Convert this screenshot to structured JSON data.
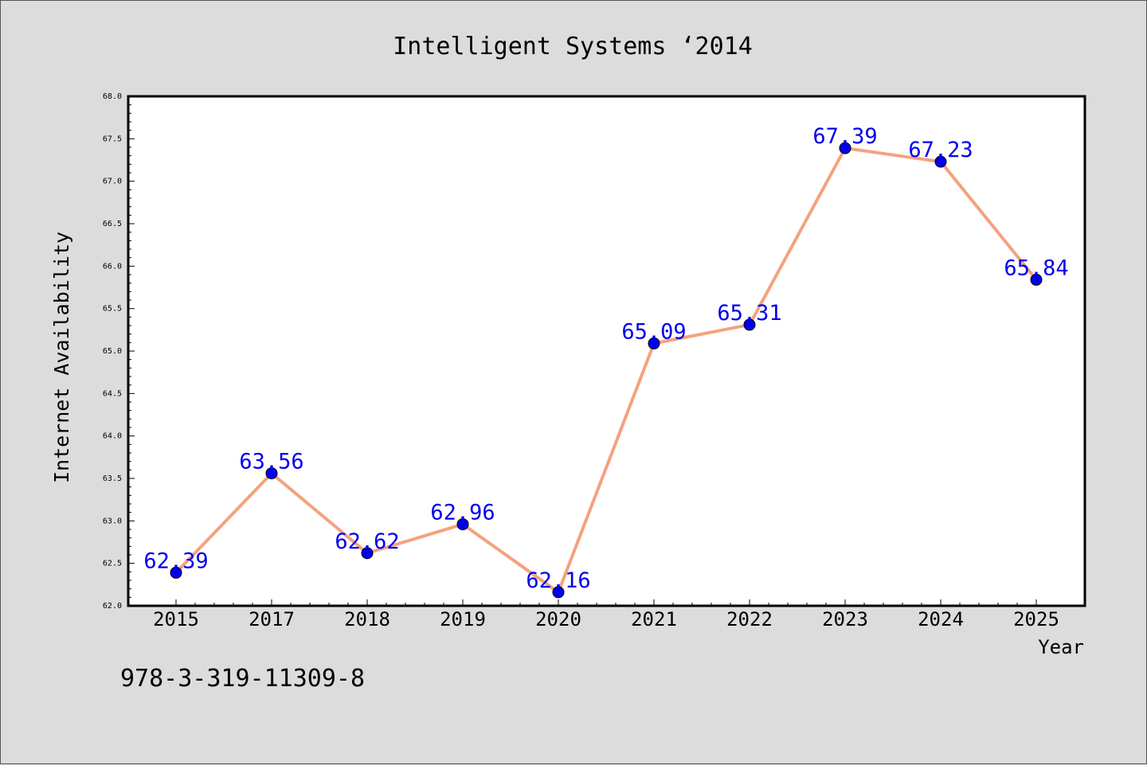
{
  "chart_data": {
    "type": "line",
    "title": "Intelligent Systems ‘2014",
    "xlabel": "Year",
    "ylabel": "Internet Availability",
    "categories": [
      "2015",
      "2017",
      "2018",
      "2019",
      "2020",
      "2021",
      "2022",
      "2023",
      "2024",
      "2025"
    ],
    "series": [
      {
        "values": [
          62.39,
          63.56,
          62.62,
          62.96,
          62.16,
          65.09,
          65.31,
          67.39,
          67.23,
          65.84
        ],
        "labels": [
          "62.39",
          "63.56",
          "62.62",
          "62.96",
          "62.16",
          "65.09",
          "65.31",
          "67.39",
          "67.23",
          "65.84"
        ]
      }
    ],
    "ylim": [
      62.0,
      68.0
    ],
    "yticks": [
      "62.0",
      "62.5",
      "63.0",
      "63.5",
      "64.0",
      "64.5",
      "65.0",
      "65.5",
      "66.0",
      "66.5",
      "67.0",
      "67.5",
      "68.0"
    ],
    "grid": false,
    "colors": {
      "line": "#f4a27f",
      "marker": "#0000ee",
      "label": "#0000ee",
      "background": "#dcdcdc",
      "plot_background": "#ffffff"
    }
  },
  "footer_text": "978-3-319-11309-8"
}
